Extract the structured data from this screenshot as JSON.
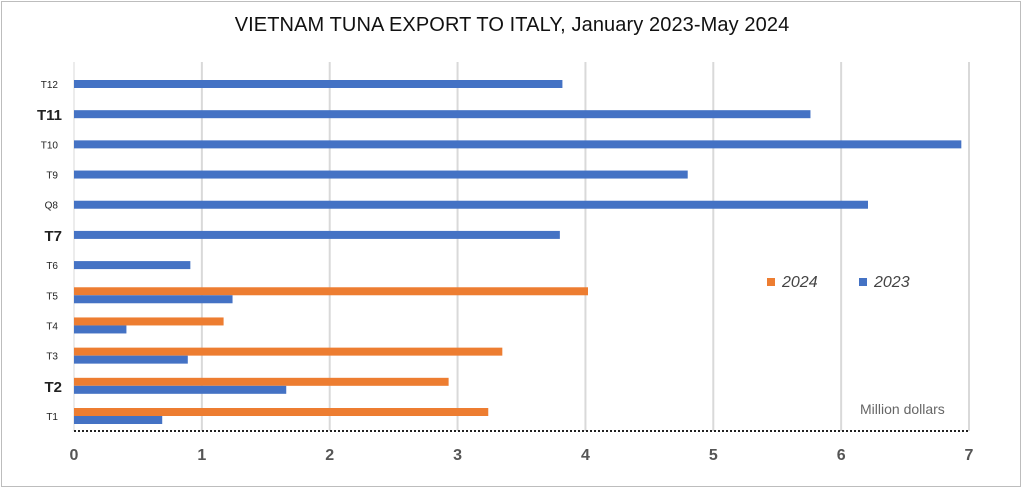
{
  "chart_data": {
    "type": "bar",
    "orientation": "horizontal",
    "title": "VIETNAM TUNA EXPORT TO ITALY, January 2023-May 2024",
    "unit": "Million dollars",
    "categories": [
      "T1",
      "T2",
      "T3",
      "T4",
      "T5",
      "T6",
      "T7",
      "Q8",
      "T9",
      "T10",
      "T11",
      "T12"
    ],
    "series": [
      {
        "name": "2023",
        "color": "#4472c4",
        "values": [
          0.69,
          1.66,
          0.89,
          0.41,
          1.24,
          0.91,
          3.8,
          6.21,
          4.8,
          6.94,
          5.76,
          3.82
        ]
      },
      {
        "name": "2024",
        "color": "#ed7d31",
        "values": [
          3.24,
          2.93,
          3.35,
          1.17,
          4.02,
          null,
          null,
          null,
          null,
          null,
          null,
          null
        ]
      }
    ],
    "legend_order": [
      "2024",
      "2023"
    ],
    "legend_position": "right",
    "xlim": [
      0,
      7
    ],
    "x_ticks": [
      "0",
      "1",
      "2",
      "3",
      "4",
      "5",
      "6",
      "7"
    ],
    "bold_categories": [
      "T2",
      "T7",
      "T11"
    ],
    "grid": true
  }
}
